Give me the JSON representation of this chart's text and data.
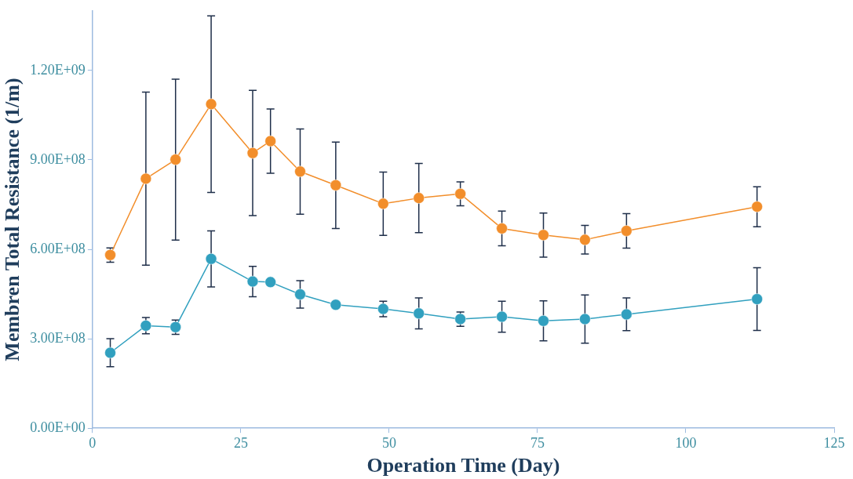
{
  "chart_data": {
    "type": "line",
    "xlabel": "Operation Time (Day)",
    "ylabel": "Membren Total Resistance (1/m)",
    "x": [
      3,
      9,
      14,
      20,
      27,
      30,
      35,
      41,
      49,
      55,
      62,
      69,
      76,
      83,
      90,
      112
    ],
    "series": [
      {
        "color": "#f28e2b",
        "values": [
          581000000.0,
          837000000.0,
          901000000.0,
          1087000000.0,
          923000000.0,
          963000000.0,
          861000000.0,
          815000000.0,
          753000000.0,
          772000000.0,
          786000000.0,
          670000000.0,
          648000000.0,
          632000000.0,
          662000000.0,
          743000000.0
        ],
        "errors": [
          24000000.0,
          290000000.0,
          270000000.0,
          296000000.0,
          210000000.0,
          108000000.0,
          143000000.0,
          145000000.0,
          106000000.0,
          116000000.0,
          40000000.0,
          58000000.0,
          74000000.0,
          48000000.0,
          58000000.0,
          67000000.0
        ]
      },
      {
        "color": "#31a0bf",
        "values": [
          253000000.0,
          344000000.0,
          339000000.0,
          568000000.0,
          492000000.0,
          490000000.0,
          449000000.0,
          414000000.0,
          400000000.0,
          385000000.0,
          366000000.0,
          374000000.0,
          360000000.0,
          366000000.0,
          382000000.0,
          433000000.0
        ],
        "errors": [
          47000000.0,
          27000000.0,
          24000000.0,
          94000000.0,
          51000000.0,
          null,
          46000000.0,
          null,
          26000000.0,
          52000000.0,
          24000000.0,
          52000000.0,
          67000000.0,
          81000000.0,
          55000000.0,
          105000000.0
        ]
      }
    ],
    "xlim": [
      0,
      125
    ],
    "xticks": [
      0,
      25,
      50,
      75,
      100,
      125
    ],
    "ylim": [
      0,
      1400000000.0
    ],
    "yticks": [
      {
        "value": 0,
        "label": "0.00E+00"
      },
      {
        "value": 300000000.0,
        "label": "3.00E+08"
      },
      {
        "value": 600000000.0,
        "label": "6.00E+08"
      },
      {
        "value": 900000000.0,
        "label": "9.00E+08"
      },
      {
        "value": 1200000000.0,
        "label": "1.20E+09"
      }
    ],
    "grid": false,
    "legend": false,
    "marker": "circle",
    "line_style": "solid"
  }
}
